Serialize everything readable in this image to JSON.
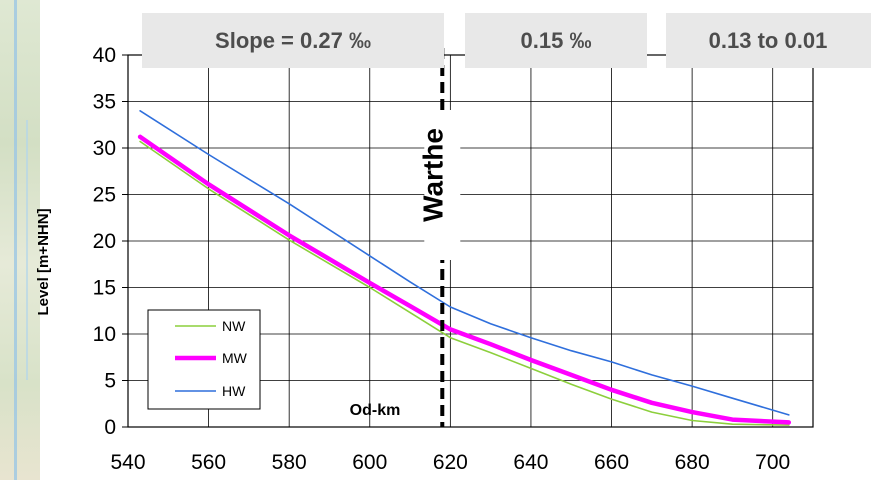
{
  "chart_data": {
    "type": "line",
    "title": "",
    "xlabel": "Od-km",
    "ylabel": "Level  [m+NHN]",
    "xlim": [
      540,
      710
    ],
    "ylim": [
      0,
      40
    ],
    "x_ticks": [
      540,
      560,
      580,
      600,
      620,
      640,
      660,
      680,
      700
    ],
    "y_ticks": [
      0,
      5,
      10,
      15,
      20,
      25,
      30,
      35,
      40
    ],
    "grid": true,
    "legend_position": "bottom-left",
    "series": [
      {
        "name": "NW",
        "color": "#8ccf3c",
        "points": [
          [
            543,
            30.7
          ],
          [
            560,
            25.6
          ],
          [
            580,
            20.1
          ],
          [
            600,
            15.0
          ],
          [
            610,
            12.3
          ],
          [
            620,
            9.6
          ],
          [
            630,
            8.0
          ],
          [
            640,
            6.3
          ],
          [
            650,
            4.6
          ],
          [
            660,
            3.0
          ],
          [
            670,
            1.6
          ],
          [
            680,
            0.7
          ],
          [
            690,
            0.3
          ],
          [
            704,
            0.2
          ]
        ]
      },
      {
        "name": "MW",
        "color": "#ff00ff",
        "points": [
          [
            543,
            31.2
          ],
          [
            560,
            26.1
          ],
          [
            580,
            20.6
          ],
          [
            600,
            15.5
          ],
          [
            610,
            13.0
          ],
          [
            620,
            10.5
          ],
          [
            630,
            8.9
          ],
          [
            640,
            7.2
          ],
          [
            650,
            5.6
          ],
          [
            660,
            4.0
          ],
          [
            670,
            2.6
          ],
          [
            680,
            1.6
          ],
          [
            690,
            0.8
          ],
          [
            704,
            0.5
          ]
        ]
      },
      {
        "name": "HW",
        "color": "#2f6fdc",
        "points": [
          [
            543,
            34.0
          ],
          [
            560,
            29.3
          ],
          [
            580,
            24.0
          ],
          [
            600,
            18.4
          ],
          [
            610,
            15.6
          ],
          [
            620,
            12.9
          ],
          [
            630,
            11.1
          ],
          [
            640,
            9.6
          ],
          [
            650,
            8.2
          ],
          [
            660,
            7.0
          ],
          [
            670,
            5.6
          ],
          [
            680,
            4.4
          ],
          [
            690,
            3.1
          ],
          [
            704,
            1.3
          ]
        ]
      }
    ],
    "annotations": {
      "vertical_marker": {
        "x": 618,
        "label": "Warthe"
      },
      "slope_boxes": [
        "Slope = 0.27 ‰",
        "0.15 ‰",
        "0.13 to 0.01"
      ]
    }
  }
}
